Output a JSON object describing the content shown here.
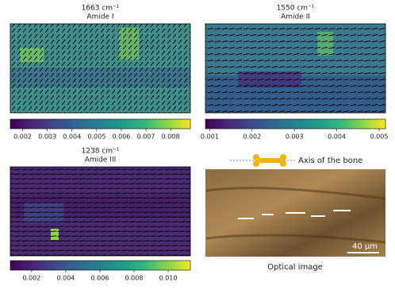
{
  "panels": [
    {
      "title": "1663 cm⁻¹",
      "subtitle": "Amide I",
      "colorbar": {
        "lim": [
          0.0015,
          0.0088
        ],
        "ticks": [
          0.002,
          0.003,
          0.004,
          0.005,
          0.006,
          0.007,
          0.008
        ]
      }
    },
    {
      "title": "1550 cm⁻¹",
      "subtitle": "Amide II",
      "colorbar": {
        "lim": [
          0.0009,
          0.00515
        ],
        "ticks": [
          0.001,
          0.002,
          0.003,
          0.004,
          0.005
        ]
      }
    },
    {
      "title": "1238 cm⁻¹",
      "subtitle": "Amide III",
      "colorbar": {
        "lim": [
          0.00075,
          0.0113
        ],
        "ticks": [
          0.002,
          0.004,
          0.006,
          0.008,
          {
            "value": 0.01,
            "label": "0.010"
          }
        ]
      }
    }
  ],
  "optical": {
    "axis_label": "Axis of the bone",
    "scale_label": "40 μm",
    "caption": "Optical image"
  }
}
